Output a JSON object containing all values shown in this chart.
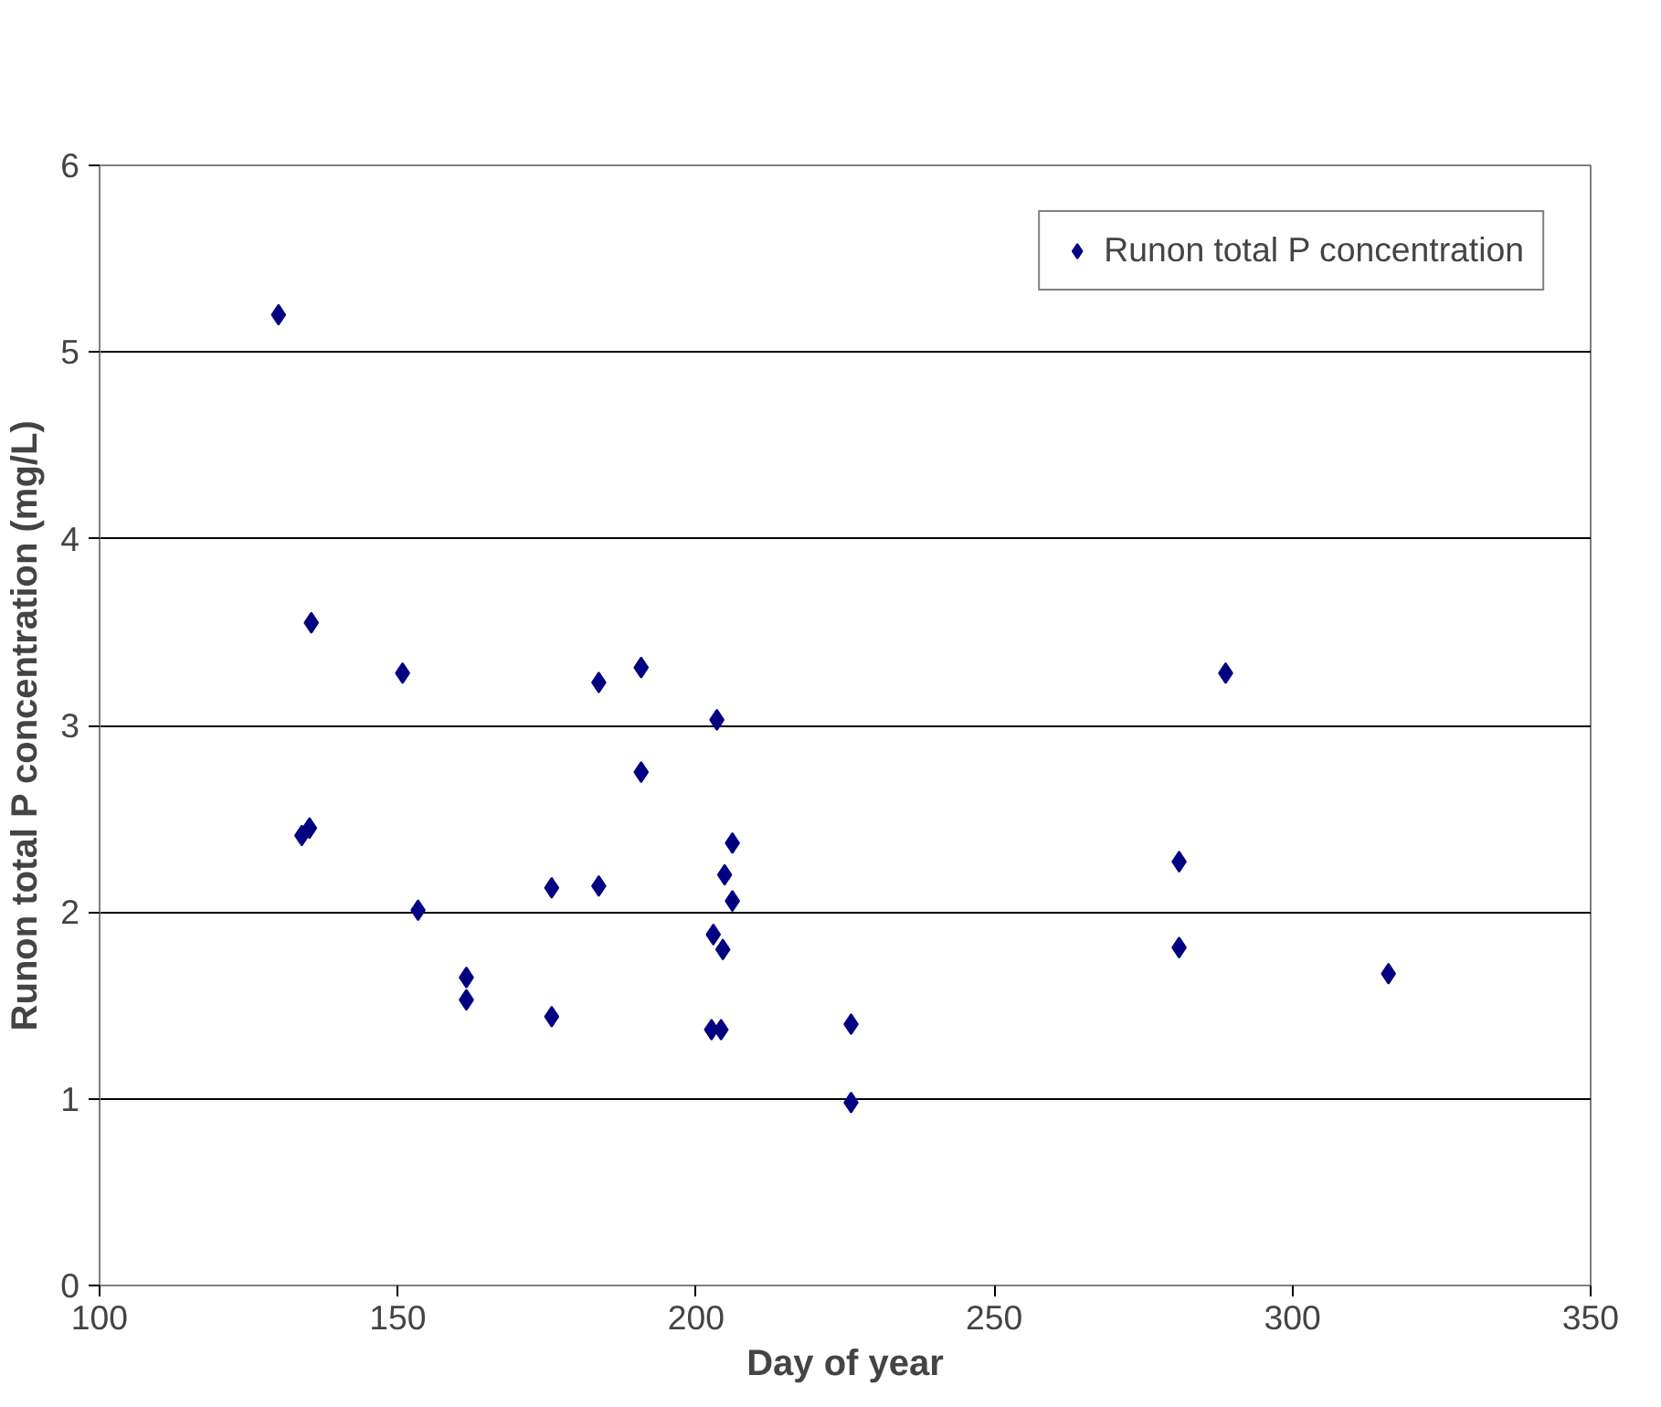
{
  "chart_data": {
    "type": "scatter",
    "xlabel": "Day of year",
    "ylabel": "Runon total P concentration (mg/L)",
    "xlim": [
      100,
      350
    ],
    "xticks": [
      100,
      150,
      200,
      250,
      300,
      350
    ],
    "ylim": [
      0,
      6
    ],
    "yticks": [
      0,
      1,
      2,
      3,
      4,
      5,
      6
    ],
    "grid": "y",
    "legend": "top right",
    "marker": "diamond",
    "series": [
      {
        "name": "Runon total P concentration",
        "color": "#000080",
        "x": [
          130,
          135.5,
          150.8,
          133.9,
          135.2,
          153.4,
          161.5,
          161.5,
          175.8,
          175.8,
          183.7,
          183.7,
          190.8,
          190.8,
          203.5,
          206.1,
          204.8,
          206.1,
          202.9,
          204.5,
          202.6,
          204.2,
          226,
          226,
          281,
          281,
          288.8,
          316.1
        ],
        "values": [
          5.2,
          3.55,
          3.28,
          2.41,
          2.45,
          2.01,
          1.65,
          1.53,
          2.13,
          1.44,
          3.23,
          2.14,
          3.31,
          2.75,
          3.03,
          2.37,
          2.2,
          2.06,
          1.88,
          1.8,
          1.37,
          1.37,
          1.4,
          0.98,
          2.27,
          1.81,
          3.28,
          1.67
        ]
      }
    ]
  }
}
